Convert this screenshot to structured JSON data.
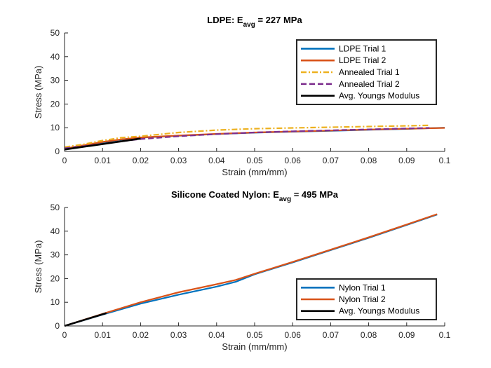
{
  "chart_data": [
    {
      "type": "line",
      "title_main": "LDPE: E",
      "title_sub": "avg",
      "title_tail": " = 227 MPa",
      "xlabel": "Strain (mm/mm)",
      "ylabel": "Stress (MPa)",
      "xlim": [
        0,
        0.1
      ],
      "ylim": [
        0,
        50
      ],
      "xticks": [
        "0",
        "0.01",
        "0.02",
        "0.03",
        "0.04",
        "0.05",
        "0.06",
        "0.07",
        "0.08",
        "0.09",
        "0.1"
      ],
      "yticks": [
        "0",
        "10",
        "20",
        "30",
        "40",
        "50"
      ],
      "legend_position": "top-right",
      "series": [
        {
          "name": "LDPE Trial 1",
          "color": "#0072BD",
          "dash": "solid",
          "x": [
            0,
            0.005,
            0.01,
            0.015,
            0.02,
            0.03,
            0.04,
            0.05,
            0.06,
            0.07,
            0.08,
            0.09,
            0.1
          ],
          "y": [
            1.0,
            2.5,
            3.8,
            5.0,
            5.8,
            6.6,
            7.3,
            7.9,
            8.3,
            8.7,
            9.1,
            9.5,
            10.0
          ]
        },
        {
          "name": "LDPE Trial 2",
          "color": "#D95319",
          "dash": "solid",
          "x": [
            0,
            0.005,
            0.01,
            0.015,
            0.02,
            0.03,
            0.04,
            0.05,
            0.06,
            0.07,
            0.08,
            0.09,
            0.1
          ],
          "y": [
            1.2,
            2.6,
            4.0,
            5.1,
            5.9,
            6.7,
            7.4,
            8.0,
            8.4,
            8.8,
            9.2,
            9.6,
            9.9
          ]
        },
        {
          "name": "Annealed Trial 1",
          "color": "#EDB120",
          "dash": "dashdot",
          "x": [
            0,
            0.005,
            0.01,
            0.015,
            0.02,
            0.025,
            0.03,
            0.04,
            0.05,
            0.06,
            0.07,
            0.08,
            0.09,
            0.096
          ],
          "y": [
            1.8,
            3.0,
            4.6,
            5.8,
            6.4,
            7.2,
            8.0,
            9.0,
            9.6,
            9.9,
            10.2,
            10.5,
            10.8,
            11.0
          ]
        },
        {
          "name": "Annealed Trial 2",
          "color": "#7E2F8E",
          "dash": "dashed",
          "x": [
            0,
            0.005,
            0.01,
            0.015,
            0.02,
            0.03,
            0.04,
            0.05,
            0.06,
            0.07,
            0.08,
            0.09,
            0.096
          ],
          "y": [
            1.3,
            2.2,
            3.2,
            4.3,
            5.2,
            6.4,
            7.3,
            8.0,
            8.5,
            8.9,
            9.3,
            9.7,
            9.9
          ]
        },
        {
          "name": "Avg. Youngs Modulus",
          "color": "#000000",
          "dash": "solid",
          "width": 2.6,
          "x": [
            0,
            0.02
          ],
          "y": [
            0.8,
            5.4
          ]
        }
      ]
    },
    {
      "type": "line",
      "title_main": "Silicone Coated Nylon: E",
      "title_sub": "avg",
      "title_tail": " = 495 MPa",
      "xlabel": "Strain (mm/mm)",
      "ylabel": "Stress (MPa)",
      "xlim": [
        0,
        0.1
      ],
      "ylim": [
        0,
        50
      ],
      "xticks": [
        "0",
        "0.01",
        "0.02",
        "0.03",
        "0.04",
        "0.05",
        "0.06",
        "0.07",
        "0.08",
        "0.09",
        "0.1"
      ],
      "yticks": [
        "0",
        "10",
        "20",
        "30",
        "40",
        "50"
      ],
      "legend_position": "bottom-right",
      "series": [
        {
          "name": "Nylon Trial 1",
          "color": "#0072BD",
          "dash": "solid",
          "x": [
            0,
            0.01,
            0.02,
            0.03,
            0.04,
            0.045,
            0.05,
            0.06,
            0.07,
            0.08,
            0.09,
            0.098
          ],
          "y": [
            0,
            4.8,
            9.4,
            13.2,
            16.6,
            18.6,
            21.8,
            26.8,
            32.0,
            37.2,
            42.6,
            47.0
          ]
        },
        {
          "name": "Nylon Trial 2",
          "color": "#D95319",
          "dash": "solid",
          "x": [
            0,
            0.01,
            0.02,
            0.03,
            0.04,
            0.045,
            0.05,
            0.06,
            0.07,
            0.08,
            0.09,
            0.098
          ],
          "y": [
            0,
            5.1,
            10.0,
            14.2,
            17.6,
            19.4,
            22.0,
            27.0,
            32.2,
            37.4,
            42.8,
            47.2
          ]
        },
        {
          "name": "Avg. Youngs Modulus",
          "color": "#000000",
          "dash": "solid",
          "width": 2.6,
          "x": [
            0,
            0.011
          ],
          "y": [
            0,
            5.4
          ]
        }
      ]
    }
  ]
}
